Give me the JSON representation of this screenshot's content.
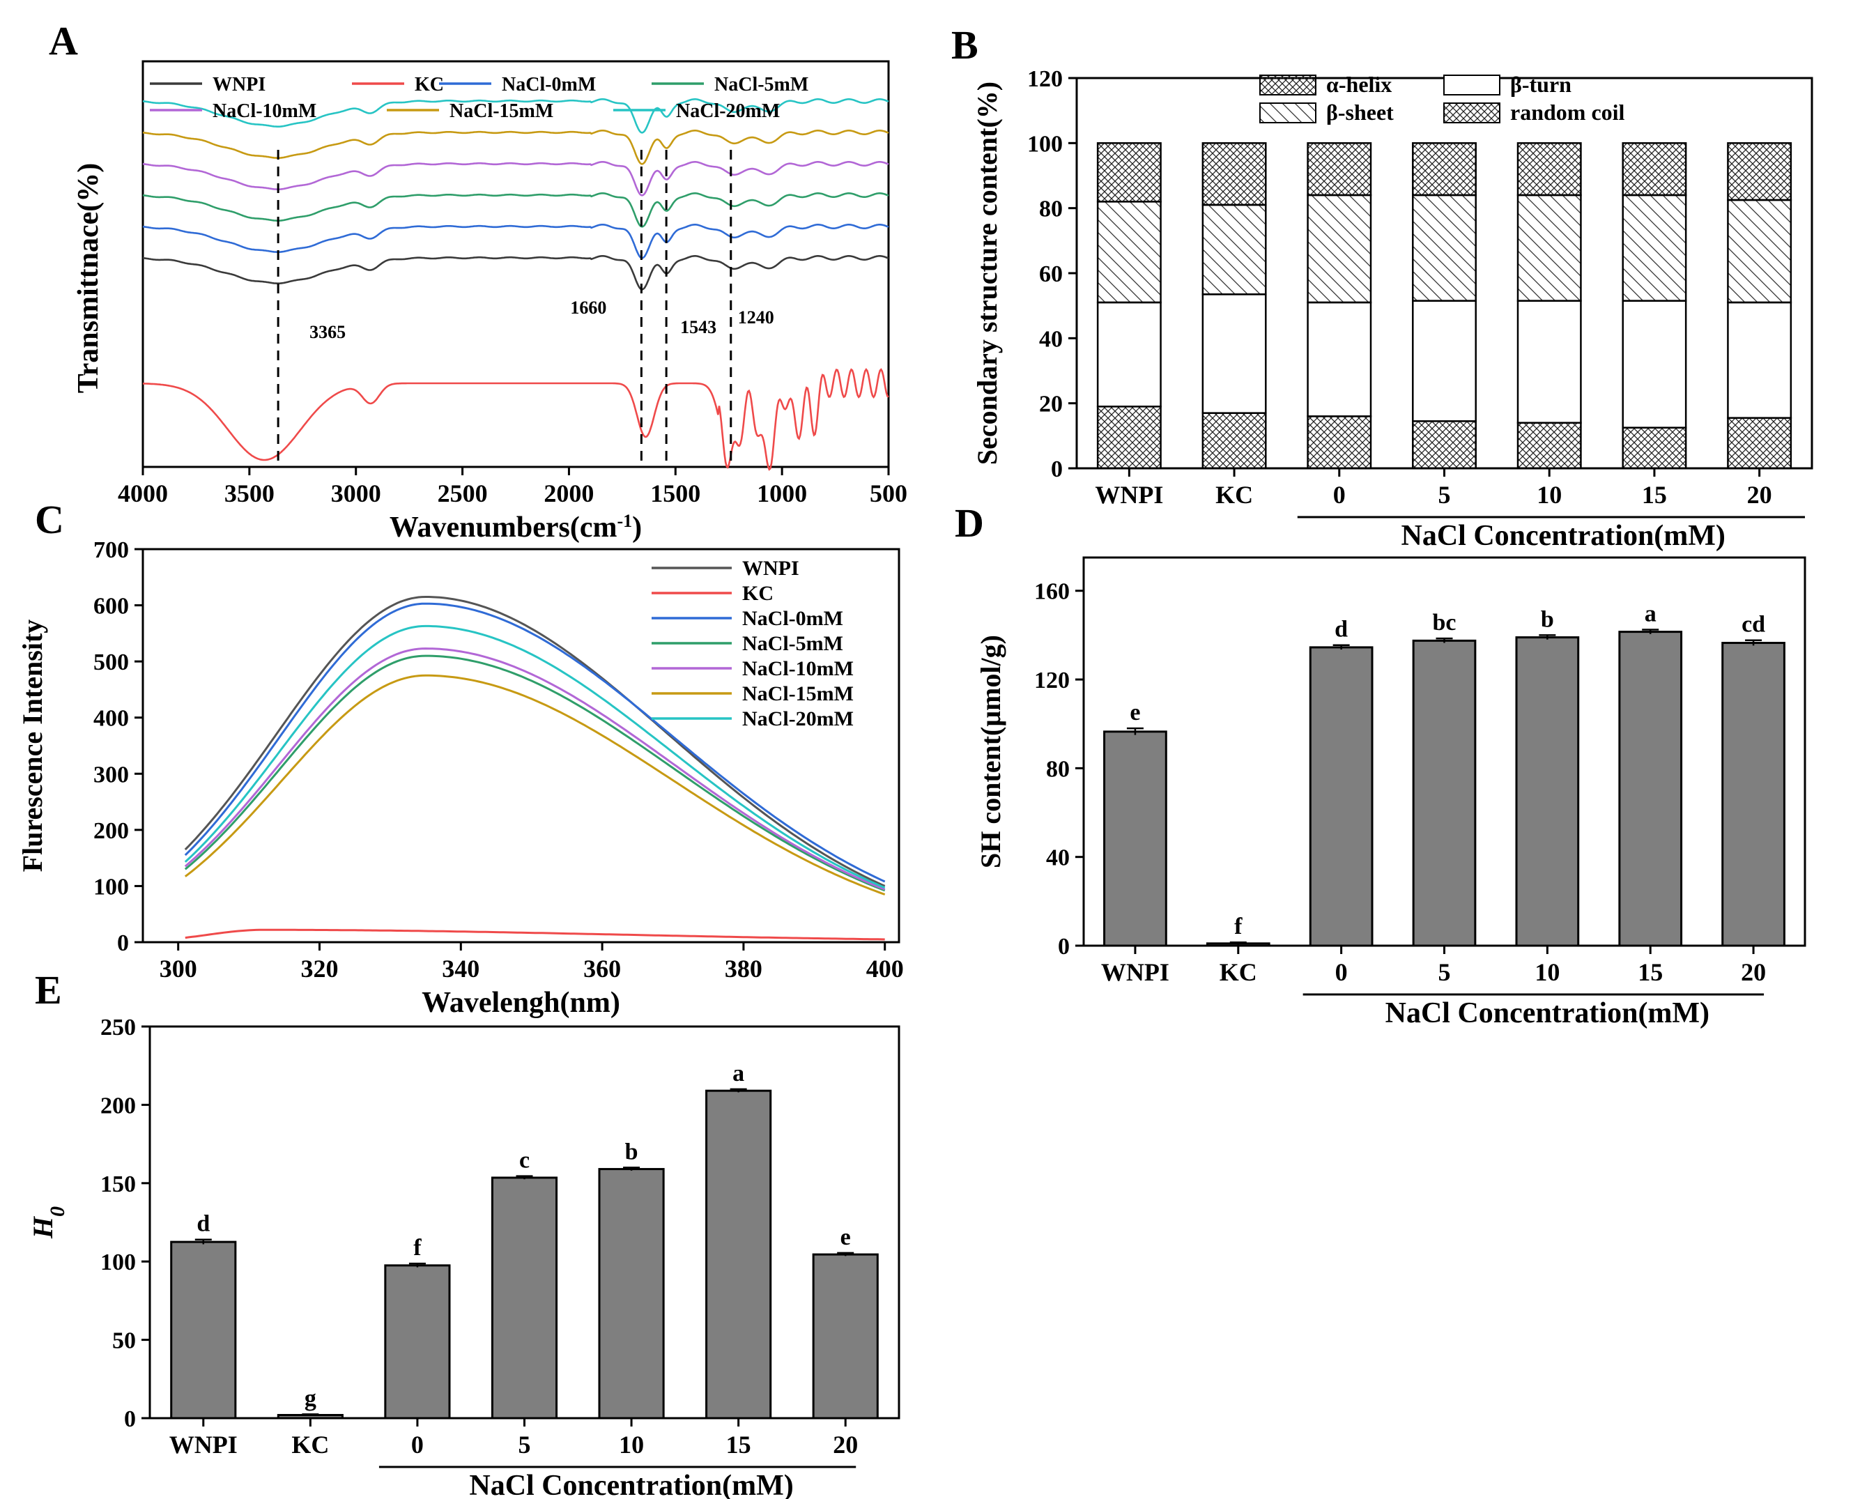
{
  "figure": {
    "panels": [
      "A",
      "B",
      "C",
      "D",
      "E"
    ]
  },
  "chart_data": [
    {
      "panel": "A",
      "type": "line",
      "title": "",
      "xlabel": "Wavenumbers(cm",
      "xlabel_exp": "-1",
      "xlabel_end": ")",
      "ylabel": "Transmittnace(%)",
      "xlim": [
        4000,
        500
      ],
      "xticks": [
        4000,
        3500,
        3000,
        2500,
        2000,
        1500,
        1000,
        500
      ],
      "vlines": [
        3365,
        1660,
        1543,
        1240
      ],
      "annotations": [
        "3365",
        "1660",
        "1543",
        "1240"
      ],
      "series": [
        {
          "name": "WNPI",
          "color": "#3a3a3a",
          "offset": 4.0
        },
        {
          "name": "KC",
          "color": "#ef4a4a",
          "offset": 0.0
        },
        {
          "name": "NaCl-0mM",
          "color": "#2f6bd6",
          "offset": 5.0
        },
        {
          "name": "NaCl-5mM",
          "color": "#2f9e6a",
          "offset": 6.0
        },
        {
          "name": "NaCl-10mM",
          "color": "#b267d6",
          "offset": 7.0
        },
        {
          "name": "NaCl-15mM",
          "color": "#c79a13",
          "offset": 8.0
        },
        {
          "name": "NaCl-20mM",
          "color": "#27c4c4",
          "offset": 9.0
        }
      ]
    },
    {
      "panel": "B",
      "type": "bar",
      "stacked": true,
      "ylabel": "Secondary structure content(%)",
      "xlabel": "NaCl Concentration(mM)",
      "ylim": [
        0,
        120
      ],
      "yticks": [
        0,
        20,
        40,
        60,
        80,
        100,
        120
      ],
      "categories": [
        "WNPI",
        "KC",
        "0",
        "5",
        "10",
        "15",
        "20"
      ],
      "series": [
        {
          "name": "random coil",
          "values": [
            19,
            17,
            16,
            14.5,
            14,
            12.5,
            15.5
          ]
        },
        {
          "name": "β-turn",
          "values": [
            32,
            36.5,
            35,
            37,
            37.5,
            39,
            35.5
          ]
        },
        {
          "name": "β-sheet",
          "values": [
            31,
            27.5,
            33,
            32.5,
            32.5,
            32.5,
            31.5
          ]
        },
        {
          "name": "α-helix",
          "values": [
            18,
            19,
            16,
            16,
            16,
            16,
            17.5
          ]
        }
      ],
      "legend": [
        "α-helix",
        "β-turn",
        "β-sheet",
        "random coil"
      ]
    },
    {
      "panel": "C",
      "type": "line",
      "xlabel": "Wavelengh(nm)",
      "ylabel": "Flurescence Intensity",
      "xlim": [
        295,
        402
      ],
      "ylim": [
        0,
        700
      ],
      "xticks": [
        300,
        320,
        340,
        360,
        380,
        400
      ],
      "yticks": [
        0,
        100,
        200,
        300,
        400,
        500,
        600,
        700
      ],
      "series": [
        {
          "name": "WNPI",
          "color": "#555555",
          "x": [
            301,
            335,
            400
          ],
          "y": [
            165,
            615,
            100
          ]
        },
        {
          "name": "KC",
          "color": "#ef4a4a",
          "x": [
            301,
            312,
            400
          ],
          "y": [
            8,
            22,
            5
          ]
        },
        {
          "name": "NaCl-0mM",
          "color": "#2f6bd6",
          "x": [
            301,
            335,
            400
          ],
          "y": [
            155,
            603,
            108
          ]
        },
        {
          "name": "NaCl-5mM",
          "color": "#2f9e6a",
          "x": [
            301,
            335,
            400
          ],
          "y": [
            130,
            510,
            92
          ]
        },
        {
          "name": "NaCl-10mM",
          "color": "#b267d6",
          "x": [
            301,
            335,
            400
          ],
          "y": [
            135,
            523,
            94
          ]
        },
        {
          "name": "NaCl-15mM",
          "color": "#c79a13",
          "x": [
            301,
            335,
            400
          ],
          "y": [
            117,
            475,
            85
          ]
        },
        {
          "name": "NaCl-20mM",
          "color": "#27c4c4",
          "x": [
            301,
            335,
            400
          ],
          "y": [
            143,
            563,
            97
          ]
        }
      ]
    },
    {
      "panel": "D",
      "type": "bar",
      "ylabel": "SH content(μmol/g)",
      "xlabel": "NaCl Concentration(mM)",
      "ylim": [
        0,
        175
      ],
      "yticks": [
        0,
        40,
        80,
        120,
        160
      ],
      "categories": [
        "WNPI",
        "KC",
        "0",
        "5",
        "10",
        "15",
        "20"
      ],
      "values": [
        96.5,
        1,
        134.5,
        137.5,
        139,
        141.5,
        136.5
      ],
      "errors": [
        1.5,
        0.5,
        1,
        1,
        1,
        1,
        1.2
      ],
      "labels": [
        "e",
        "f",
        "d",
        "bc",
        "b",
        "a",
        "cd"
      ]
    },
    {
      "panel": "E",
      "type": "bar",
      "ylabel": "H",
      "ylabel_sub": "0",
      "xlabel": "NaCl Concentration(mM)",
      "ylim": [
        0,
        250
      ],
      "yticks": [
        0,
        50,
        100,
        150,
        200,
        250
      ],
      "categories": [
        "WNPI",
        "KC",
        "0",
        "5",
        "10",
        "15",
        "20"
      ],
      "values": [
        112.5,
        2,
        97.5,
        153.5,
        159,
        209,
        104.5
      ],
      "errors": [
        1.5,
        0.5,
        1.2,
        1,
        1,
        1,
        1
      ],
      "labels": [
        "d",
        "g",
        "f",
        "c",
        "b",
        "a",
        "e"
      ]
    }
  ]
}
